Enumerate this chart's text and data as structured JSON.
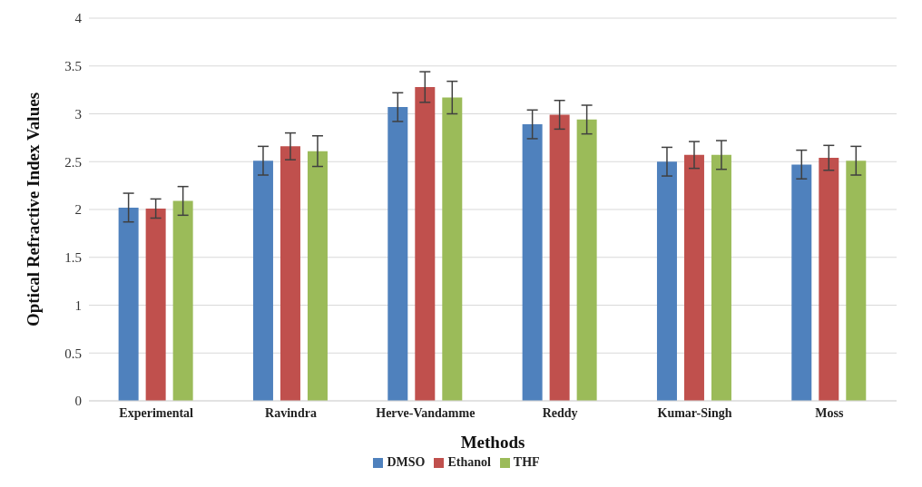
{
  "chart_data": {
    "type": "bar",
    "xlabel": "Methods",
    "ylabel": "Optical Refractive Index Values",
    "categories": [
      "Experimental",
      "Ravindra",
      "Herve-Vandamme",
      "Reddy",
      "Kumar-Singh",
      "Moss"
    ],
    "series": [
      {
        "name": "DMSO",
        "color": "#4f81bd",
        "values": [
          2.02,
          2.51,
          3.07,
          2.89,
          2.5,
          2.47
        ],
        "errors": [
          0.15,
          0.15,
          0.15,
          0.15,
          0.15,
          0.15
        ]
      },
      {
        "name": "Ethanol",
        "color": "#c0504d",
        "values": [
          2.01,
          2.66,
          3.28,
          2.99,
          2.57,
          2.54
        ],
        "errors": [
          0.1,
          0.14,
          0.16,
          0.15,
          0.14,
          0.13
        ]
      },
      {
        "name": "THF",
        "color": "#9bbb59",
        "values": [
          2.09,
          2.61,
          3.17,
          2.94,
          2.57,
          2.51
        ],
        "errors": [
          0.15,
          0.16,
          0.17,
          0.15,
          0.15,
          0.15
        ]
      }
    ],
    "ylim": [
      0,
      4
    ],
    "yticks": [
      0,
      0.5,
      1,
      1.5,
      2,
      2.5,
      3,
      3.5,
      4
    ],
    "grid": "y",
    "legend": "bottom"
  }
}
